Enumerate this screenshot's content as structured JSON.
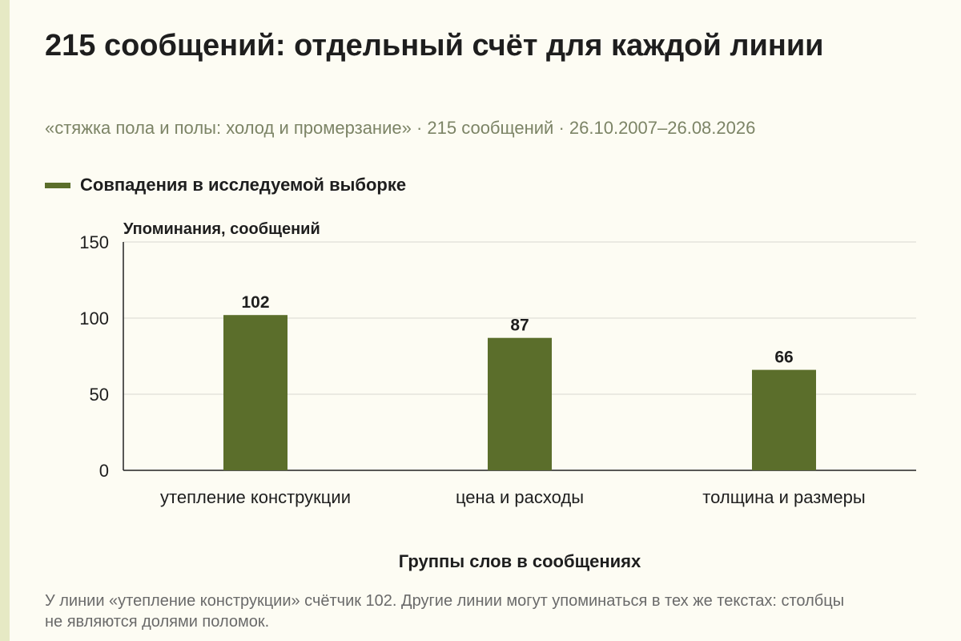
{
  "title": "215 сообщений: отдельный счёт для каждой линии",
  "subtitle": "«стяжка пола и полы: холод и промерзание» · 215 сообщений · 26.10.2007–26.08.2026",
  "caption": "У линии «утепление конструкции» счётчик 102. Другие линии могут упоминаться в тех же текстах: столбцы не являются долями поломок.",
  "colors": {
    "bar": "#5b6e2b",
    "background": "#fdfcf3",
    "strip": "#e6e9c4",
    "grid": "#d9d9d2"
  },
  "chart_data": {
    "type": "bar",
    "categories": [
      "утепление конструкции",
      "цена и расходы",
      "толщина и размеры"
    ],
    "series": [
      {
        "name": "Совпадения в исследуемой выборке",
        "values": [
          102,
          87,
          66
        ]
      }
    ],
    "xlabel": "Группы слов в сообщениях",
    "ylabel": "Упоминания, сообщений",
    "ylim": [
      0,
      150
    ],
    "yticks": [
      0,
      50,
      100,
      150
    ],
    "grid": true,
    "legend": "top-left",
    "data_labels": true
  }
}
